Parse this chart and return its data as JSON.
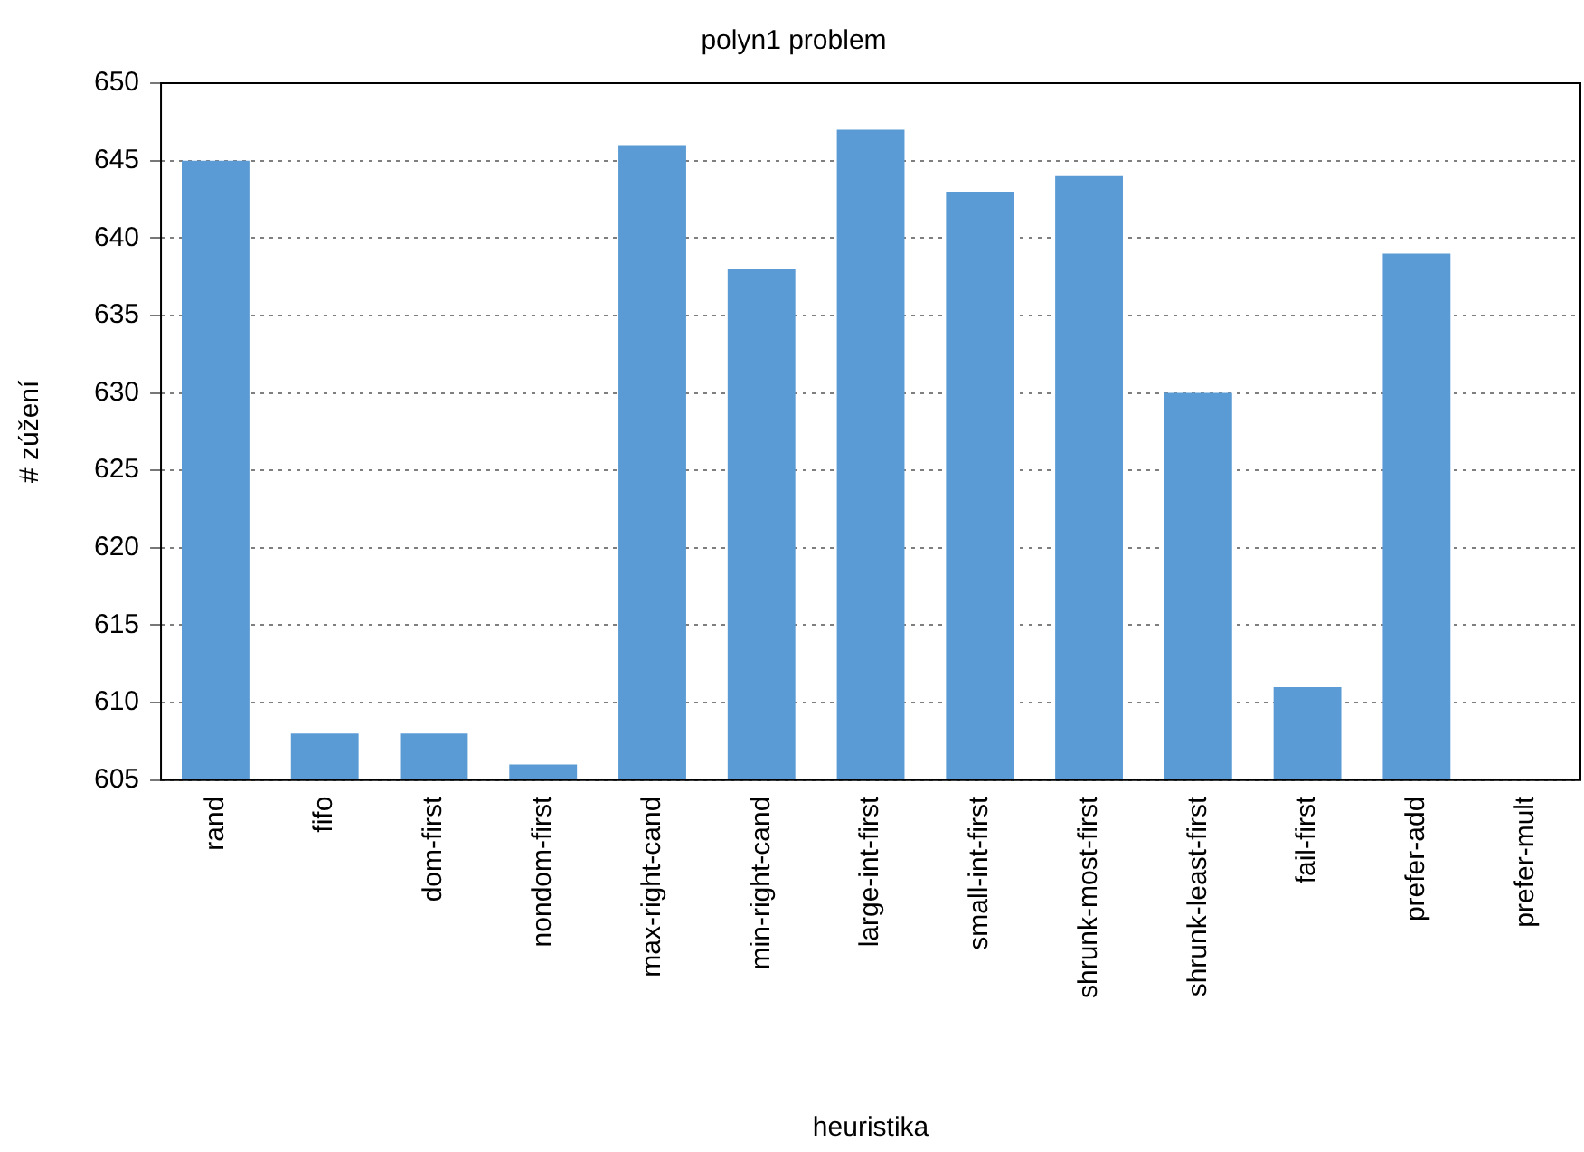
{
  "chart_data": {
    "type": "bar",
    "title": "polyn1 problem",
    "xlabel": "heuristika",
    "ylabel": "# zúžení",
    "categories": [
      "rand",
      "fifo",
      "dom-first",
      "nondom-first",
      "max-right-cand",
      "min-right-cand",
      "large-int-first",
      "small-int-first",
      "shrunk-most-first",
      "shrunk-least-first",
      "fail-first",
      "prefer-add",
      "prefer-mult"
    ],
    "values": [
      645,
      608,
      608,
      606,
      646,
      638,
      647,
      643,
      644,
      630,
      611,
      639,
      null
    ],
    "color": "#5b9bd5",
    "ylim": [
      605,
      650
    ],
    "yticks": [
      605,
      610,
      615,
      620,
      625,
      630,
      635,
      640,
      645,
      650
    ],
    "grid": "y",
    "legend": false
  }
}
